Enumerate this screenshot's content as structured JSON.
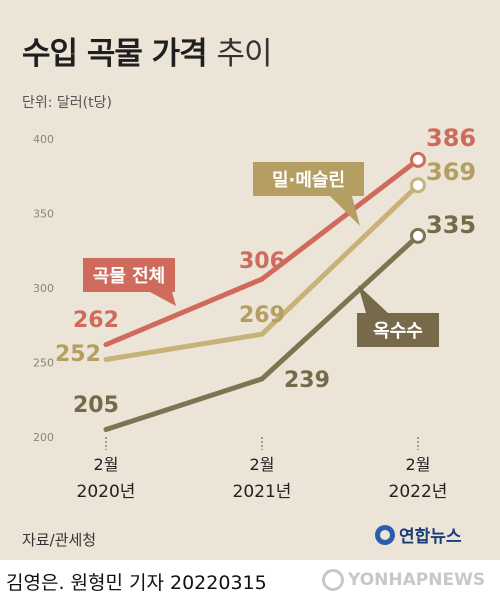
{
  "header": {
    "title_bold": "수입 곡물 가격",
    "title_light": "추이",
    "unit": "단위: 달러(t당)"
  },
  "chart_data": {
    "type": "line",
    "x": [
      "2월\n2020년",
      "2월\n2021년",
      "2월\n2022년"
    ],
    "x_labels": [
      {
        "month": "2월",
        "year": "2020년"
      },
      {
        "month": "2월",
        "year": "2021년"
      },
      {
        "month": "2월",
        "year": "2022년"
      }
    ],
    "y_ticks": [
      200,
      250,
      300,
      350,
      400
    ],
    "ylim": [
      200,
      400
    ],
    "grid": false,
    "series": [
      {
        "name": "곡물 전체",
        "values": [
          262,
          306,
          386
        ],
        "color": "#d06a5b",
        "label_color": "#cf6b5c"
      },
      {
        "name": "밀·메슬린",
        "values": [
          252,
          269,
          369
        ],
        "color": "#c7b27a",
        "label_color": "#b59e62"
      },
      {
        "name": "옥수수",
        "values": [
          205,
          239,
          335
        ],
        "color": "#7f7352",
        "label_color": "#766a4a"
      }
    ]
  },
  "footer": {
    "source": "자료/관세청",
    "brand": "연합뉴스",
    "credit": "김영은. 원형민 기자  20220315",
    "watermark": "YONHAPNEWS"
  }
}
